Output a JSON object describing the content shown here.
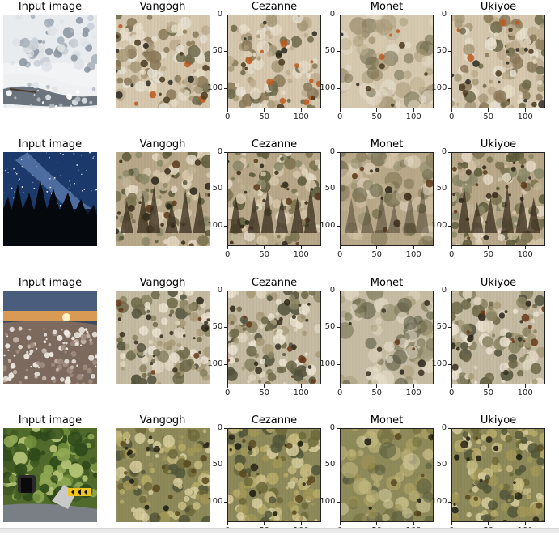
{
  "figure": {
    "rows": [
      {
        "row_index": 1,
        "panels": [
          {
            "title": "Input image",
            "has_axes": false,
            "kind": "winter-forest-stream"
          },
          {
            "title": "Vangogh",
            "has_axes": false,
            "kind": "stylized-snow"
          },
          {
            "title": "Cezanne",
            "has_axes": true,
            "kind": "stylized-snow"
          },
          {
            "title": "Monet",
            "has_axes": true,
            "kind": "stylized-snow-soft"
          },
          {
            "title": "Ukiyoe",
            "has_axes": true,
            "kind": "stylized-snow"
          }
        ]
      },
      {
        "row_index": 2,
        "panels": [
          {
            "title": "Input image",
            "has_axes": false,
            "kind": "night-milky-way"
          },
          {
            "title": "Vangogh",
            "has_axes": false,
            "kind": "stylized-trees"
          },
          {
            "title": "Cezanne",
            "has_axes": true,
            "kind": "stylized-trees"
          },
          {
            "title": "Monet",
            "has_axes": true,
            "kind": "stylized-trees-soft"
          },
          {
            "title": "Ukiyoe",
            "has_axes": true,
            "kind": "stylized-trees"
          }
        ]
      },
      {
        "row_index": 3,
        "panels": [
          {
            "title": "Input image",
            "has_axes": false,
            "kind": "sunset-snow-field"
          },
          {
            "title": "Vangogh",
            "has_axes": false,
            "kind": "stylized-field"
          },
          {
            "title": "Cezanne",
            "has_axes": true,
            "kind": "stylized-field"
          },
          {
            "title": "Monet",
            "has_axes": true,
            "kind": "stylized-field-soft"
          },
          {
            "title": "Ukiyoe",
            "has_axes": true,
            "kind": "stylized-field"
          }
        ]
      },
      {
        "row_index": 4,
        "panels": [
          {
            "title": "Input image",
            "has_axes": false,
            "kind": "forest-tunnel-road"
          },
          {
            "title": "Vangogh",
            "has_axes": false,
            "kind": "stylized-foliage"
          },
          {
            "title": "Cezanne",
            "has_axes": true,
            "kind": "stylized-foliage"
          },
          {
            "title": "Monet",
            "has_axes": true,
            "kind": "stylized-foliage-soft"
          },
          {
            "title": "Ukiyoe",
            "has_axes": true,
            "kind": "stylized-foliage"
          }
        ]
      }
    ],
    "axis_ticks": {
      "x": [
        "0",
        "50",
        "100"
      ],
      "y": [
        "0",
        "50",
        "100"
      ]
    }
  },
  "colors": {
    "background": "#ffffff",
    "axis": "#222222",
    "snow": "#e8e4dc",
    "sky_night": "#1b3a6b",
    "foliage": "#5a6b2c",
    "earth": "#8a6a3a"
  }
}
